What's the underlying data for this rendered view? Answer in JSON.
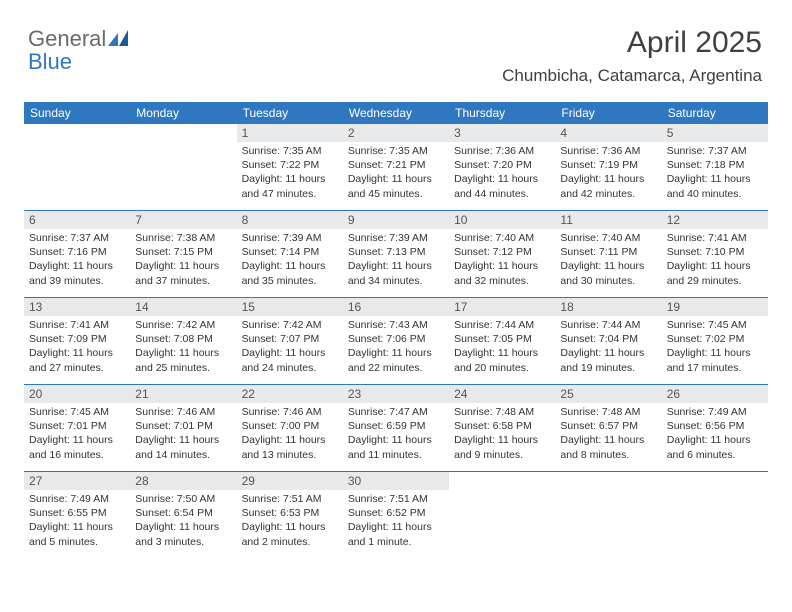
{
  "logo": {
    "text1": "General",
    "text2": "Blue"
  },
  "header": {
    "month_title": "April 2025",
    "location": "Chumbicha, Catamarca, Argentina"
  },
  "colors": {
    "brand_blue": "#2f78bf",
    "header_bg": "#2f78bf",
    "daynum_bg": "#e7e9eb",
    "text": "#404040",
    "logo_gray": "#6b6b6b"
  },
  "weekdays": [
    "Sunday",
    "Monday",
    "Tuesday",
    "Wednesday",
    "Thursday",
    "Friday",
    "Saturday"
  ],
  "weeks": [
    [
      null,
      null,
      {
        "n": "1",
        "sunrise": "7:35 AM",
        "sunset": "7:22 PM",
        "daylight": "11 hours and 47 minutes."
      },
      {
        "n": "2",
        "sunrise": "7:35 AM",
        "sunset": "7:21 PM",
        "daylight": "11 hours and 45 minutes."
      },
      {
        "n": "3",
        "sunrise": "7:36 AM",
        "sunset": "7:20 PM",
        "daylight": "11 hours and 44 minutes."
      },
      {
        "n": "4",
        "sunrise": "7:36 AM",
        "sunset": "7:19 PM",
        "daylight": "11 hours and 42 minutes."
      },
      {
        "n": "5",
        "sunrise": "7:37 AM",
        "sunset": "7:18 PM",
        "daylight": "11 hours and 40 minutes."
      }
    ],
    [
      {
        "n": "6",
        "sunrise": "7:37 AM",
        "sunset": "7:16 PM",
        "daylight": "11 hours and 39 minutes."
      },
      {
        "n": "7",
        "sunrise": "7:38 AM",
        "sunset": "7:15 PM",
        "daylight": "11 hours and 37 minutes."
      },
      {
        "n": "8",
        "sunrise": "7:39 AM",
        "sunset": "7:14 PM",
        "daylight": "11 hours and 35 minutes."
      },
      {
        "n": "9",
        "sunrise": "7:39 AM",
        "sunset": "7:13 PM",
        "daylight": "11 hours and 34 minutes."
      },
      {
        "n": "10",
        "sunrise": "7:40 AM",
        "sunset": "7:12 PM",
        "daylight": "11 hours and 32 minutes."
      },
      {
        "n": "11",
        "sunrise": "7:40 AM",
        "sunset": "7:11 PM",
        "daylight": "11 hours and 30 minutes."
      },
      {
        "n": "12",
        "sunrise": "7:41 AM",
        "sunset": "7:10 PM",
        "daylight": "11 hours and 29 minutes."
      }
    ],
    [
      {
        "n": "13",
        "sunrise": "7:41 AM",
        "sunset": "7:09 PM",
        "daylight": "11 hours and 27 minutes."
      },
      {
        "n": "14",
        "sunrise": "7:42 AM",
        "sunset": "7:08 PM",
        "daylight": "11 hours and 25 minutes."
      },
      {
        "n": "15",
        "sunrise": "7:42 AM",
        "sunset": "7:07 PM",
        "daylight": "11 hours and 24 minutes."
      },
      {
        "n": "16",
        "sunrise": "7:43 AM",
        "sunset": "7:06 PM",
        "daylight": "11 hours and 22 minutes."
      },
      {
        "n": "17",
        "sunrise": "7:44 AM",
        "sunset": "7:05 PM",
        "daylight": "11 hours and 20 minutes."
      },
      {
        "n": "18",
        "sunrise": "7:44 AM",
        "sunset": "7:04 PM",
        "daylight": "11 hours and 19 minutes."
      },
      {
        "n": "19",
        "sunrise": "7:45 AM",
        "sunset": "7:02 PM",
        "daylight": "11 hours and 17 minutes."
      }
    ],
    [
      {
        "n": "20",
        "sunrise": "7:45 AM",
        "sunset": "7:01 PM",
        "daylight": "11 hours and 16 minutes."
      },
      {
        "n": "21",
        "sunrise": "7:46 AM",
        "sunset": "7:01 PM",
        "daylight": "11 hours and 14 minutes."
      },
      {
        "n": "22",
        "sunrise": "7:46 AM",
        "sunset": "7:00 PM",
        "daylight": "11 hours and 13 minutes."
      },
      {
        "n": "23",
        "sunrise": "7:47 AM",
        "sunset": "6:59 PM",
        "daylight": "11 hours and 11 minutes."
      },
      {
        "n": "24",
        "sunrise": "7:48 AM",
        "sunset": "6:58 PM",
        "daylight": "11 hours and 9 minutes."
      },
      {
        "n": "25",
        "sunrise": "7:48 AM",
        "sunset": "6:57 PM",
        "daylight": "11 hours and 8 minutes."
      },
      {
        "n": "26",
        "sunrise": "7:49 AM",
        "sunset": "6:56 PM",
        "daylight": "11 hours and 6 minutes."
      }
    ],
    [
      {
        "n": "27",
        "sunrise": "7:49 AM",
        "sunset": "6:55 PM",
        "daylight": "11 hours and 5 minutes."
      },
      {
        "n": "28",
        "sunrise": "7:50 AM",
        "sunset": "6:54 PM",
        "daylight": "11 hours and 3 minutes."
      },
      {
        "n": "29",
        "sunrise": "7:51 AM",
        "sunset": "6:53 PM",
        "daylight": "11 hours and 2 minutes."
      },
      {
        "n": "30",
        "sunrise": "7:51 AM",
        "sunset": "6:52 PM",
        "daylight": "11 hours and 1 minute."
      },
      null,
      null,
      null
    ]
  ],
  "labels": {
    "sunrise_prefix": "Sunrise: ",
    "sunset_prefix": "Sunset: ",
    "daylight_prefix": "Daylight: "
  }
}
